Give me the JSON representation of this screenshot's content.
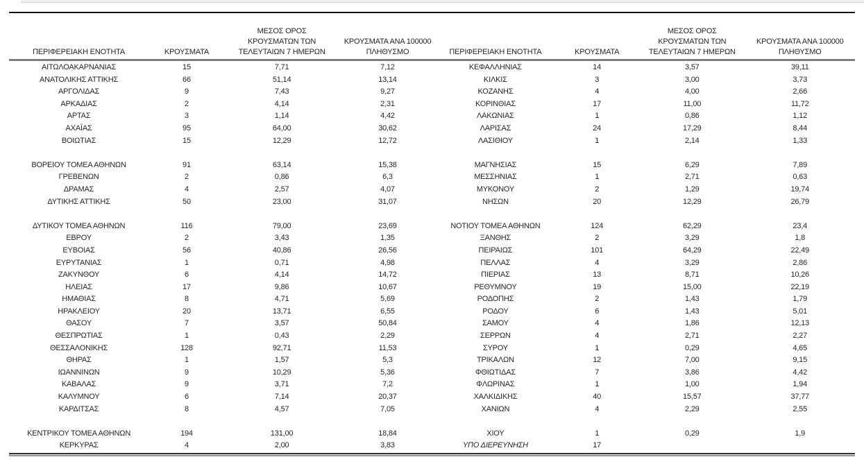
{
  "document": {
    "description": "Greek regional COVID-19 case table, two table halves side by side",
    "language": "el"
  },
  "colors": {
    "background": "#ffffff",
    "text": "#262626",
    "top_rule": "#101010",
    "header_rule": "#7f7f7f",
    "bottom_rule_dark": "#2f2f2f",
    "bottom_rule_light": "#939393"
  },
  "columns": {
    "region": "ΠΕΡΙΦΕΡΕΙΑΚΗ ΕΝΟΤΗΤΑ",
    "cases": "ΚΡΟΥΣΜΑΤΑ",
    "avg7": "ΜΕΣΟΣ ΟΡΟΣ\nΚΡΟΥΣΜΑΤΩΝ ΤΩΝ\nΤΕΛΕΥΤΑΙΩΝ 7 ΗΜΕΡΩΝ",
    "per100k": "ΚΡΟΥΣΜΑΤΑ ΑΝΑ 100000\nΠΛΗΘΥΣΜΟ"
  },
  "rows": [
    {
      "l": [
        "ΑΙΤΩΛΟΑΚΑΡΝΑΝΙΑΣ",
        "15",
        "7,71",
        "7,12"
      ],
      "r": [
        "ΚΕΦΑΛΛΗΝΙΑΣ",
        "14",
        "3,57",
        "39,11"
      ]
    },
    {
      "l": [
        "ΑΝΑΤΟΛΙΚΗΣ ΑΤΤΙΚΗΣ",
        "66",
        "51,14",
        "13,14"
      ],
      "r": [
        "ΚΙΛΚΙΣ",
        "3",
        "3,00",
        "3,73"
      ]
    },
    {
      "l": [
        "ΑΡΓΟΛΙΔΑΣ",
        "9",
        "7,43",
        "9,27"
      ],
      "r": [
        "ΚΟΖΑΝΗΣ",
        "4",
        "4,00",
        "2,66"
      ]
    },
    {
      "l": [
        "ΑΡΚΑΔΙΑΣ",
        "2",
        "4,14",
        "2,31"
      ],
      "r": [
        "ΚΟΡΙΝΘΙΑΣ",
        "17",
        "11,00",
        "11,72"
      ]
    },
    {
      "l": [
        "ΑΡΤΑΣ",
        "3",
        "1,14",
        "4,42"
      ],
      "r": [
        "ΛΑΚΩΝΙΑΣ",
        "1",
        "0,86",
        "1,12"
      ]
    },
    {
      "l": [
        "ΑΧΑΪΑΣ",
        "95",
        "64,00",
        "30,62"
      ],
      "r": [
        "ΛΑΡΙΣΑΣ",
        "24",
        "17,29",
        "8,44"
      ]
    },
    {
      "l": [
        "ΒΟΙΩΤΙΑΣ",
        "15",
        "12,29",
        "12,72"
      ],
      "r": [
        "ΛΑΣΙΘΙΟΥ",
        "1",
        "2,14",
        "1,33"
      ]
    },
    {
      "spacer": true
    },
    {
      "l": [
        "ΒΟΡΕΙΟΥ ΤΟΜΕΑ ΑΘΗΝΩΝ",
        "91",
        "63,14",
        "15,38"
      ],
      "r": [
        "ΜΑΓΝΗΣΙΑΣ",
        "15",
        "6,29",
        "7,89"
      ]
    },
    {
      "l": [
        "ΓΡΕΒΕΝΩΝ",
        "2",
        "0,86",
        "6,3"
      ],
      "r": [
        "ΜΕΣΣΗΝΙΑΣ",
        "1",
        "2,71",
        "0,63"
      ]
    },
    {
      "l": [
        "ΔΡΑΜΑΣ",
        "4",
        "2,57",
        "4,07"
      ],
      "r": [
        "ΜΥΚΟΝΟΥ",
        "2",
        "1,29",
        "19,74"
      ]
    },
    {
      "l": [
        "ΔΥΤΙΚΗΣ ΑΤΤΙΚΗΣ",
        "50",
        "23,00",
        "31,07"
      ],
      "r": [
        "ΝΗΣΩΝ",
        "20",
        "12,29",
        "26,79"
      ]
    },
    {
      "spacer": true
    },
    {
      "l": [
        "ΔΥΤΙΚΟΥ ΤΟΜΕΑ ΑΘΗΝΩΝ",
        "116",
        "79,00",
        "23,69"
      ],
      "r": [
        "ΝΟΤΙΟΥ ΤΟΜΕΑ ΑΘΗΝΩΝ",
        "124",
        "62,29",
        "23,4"
      ]
    },
    {
      "l": [
        "ΕΒΡΟΥ",
        "2",
        "3,43",
        "1,35"
      ],
      "r": [
        "ΞΑΝΘΗΣ",
        "2",
        "3,29",
        "1,8"
      ]
    },
    {
      "l": [
        "ΕΥΒΟΙΑΣ",
        "56",
        "40,86",
        "26,56"
      ],
      "r": [
        "ΠΕΙΡΑΙΩΣ",
        "101",
        "64,29",
        "22,49"
      ]
    },
    {
      "l": [
        "ΕΥΡΥΤΑΝΙΑΣ",
        "1",
        "0,71",
        "4,98"
      ],
      "r": [
        "ΠΕΛΛΑΣ",
        "4",
        "3,29",
        "2,86"
      ]
    },
    {
      "l": [
        "ΖΑΚΥΝΘΟΥ",
        "6",
        "4,14",
        "14,72"
      ],
      "r": [
        "ΠΙΕΡΙΑΣ",
        "13",
        "8,71",
        "10,26"
      ]
    },
    {
      "l": [
        "ΗΛΕΙΑΣ",
        "17",
        "9,86",
        "10,67"
      ],
      "r": [
        "ΡΕΘΥΜΝΟΥ",
        "19",
        "15,00",
        "22,19"
      ]
    },
    {
      "l": [
        "ΗΜΑΘΙΑΣ",
        "8",
        "4,71",
        "5,69"
      ],
      "r": [
        "ΡΟΔΟΠΗΣ",
        "2",
        "1,43",
        "1,79"
      ]
    },
    {
      "l": [
        "ΗΡΑΚΛΕΙΟΥ",
        "20",
        "13,71",
        "6,55"
      ],
      "r": [
        "ΡΟΔΟΥ",
        "6",
        "1,43",
        "5,01"
      ]
    },
    {
      "l": [
        "ΘΑΣΟΥ",
        "7",
        "3,57",
        "50,84"
      ],
      "r": [
        "ΣΑΜΟΥ",
        "4",
        "1,86",
        "12,13"
      ]
    },
    {
      "l": [
        "ΘΕΣΠΡΩΤΙΑΣ",
        "1",
        "0,43",
        "2,29"
      ],
      "r": [
        "ΣΕΡΡΩΝ",
        "4",
        "2,71",
        "2,27"
      ]
    },
    {
      "l": [
        "ΘΕΣΣΑΛΟΝΙΚΗΣ",
        "128",
        "92,71",
        "11,53"
      ],
      "r": [
        "ΣΥΡΟΥ",
        "1",
        "0,29",
        "4,65"
      ]
    },
    {
      "l": [
        "ΘΗΡΑΣ",
        "1",
        "1,57",
        "5,3"
      ],
      "r": [
        "ΤΡΙΚΑΛΩΝ",
        "12",
        "7,00",
        "9,15"
      ]
    },
    {
      "l": [
        "ΙΩΑΝΝΙΝΩΝ",
        "9",
        "10,29",
        "5,36"
      ],
      "r": [
        "ΦΘΙΩΤΙΔΑΣ",
        "7",
        "3,86",
        "4,42"
      ]
    },
    {
      "l": [
        "ΚΑΒΑΛΑΣ",
        "9",
        "3,71",
        "7,2"
      ],
      "r": [
        "ΦΛΩΡΙΝΑΣ",
        "1",
        "1,00",
        "1,94"
      ]
    },
    {
      "l": [
        "ΚΑΛΥΜΝΟΥ",
        "6",
        "7,14",
        "20,37"
      ],
      "r": [
        "ΧΑΛΚΙΔΙΚΗΣ",
        "40",
        "15,57",
        "37,77"
      ]
    },
    {
      "l": [
        "ΚΑΡΔΙΤΣΑΣ",
        "8",
        "4,57",
        "7,05"
      ],
      "r": [
        "ΧΑΝΙΩΝ",
        "4",
        "2,29",
        "2,55"
      ]
    },
    {
      "spacer": true
    },
    {
      "l": [
        "ΚΕΝΤΡΙΚΟΥ ΤΟΜΕΑ ΑΘΗΝΩΝ",
        "194",
        "131,00",
        "18,84"
      ],
      "r": [
        "ΧΙΟΥ",
        "1",
        "0,29",
        "1,9"
      ]
    },
    {
      "l": [
        "ΚΕΡΚΥΡΑΣ",
        "4",
        "2,00",
        "3,83"
      ],
      "r": [
        "ΥΠΟ ΔΙΕΡΕΥΝΗΣΗ",
        "17",
        "",
        ""
      ],
      "r_italic": true
    }
  ]
}
